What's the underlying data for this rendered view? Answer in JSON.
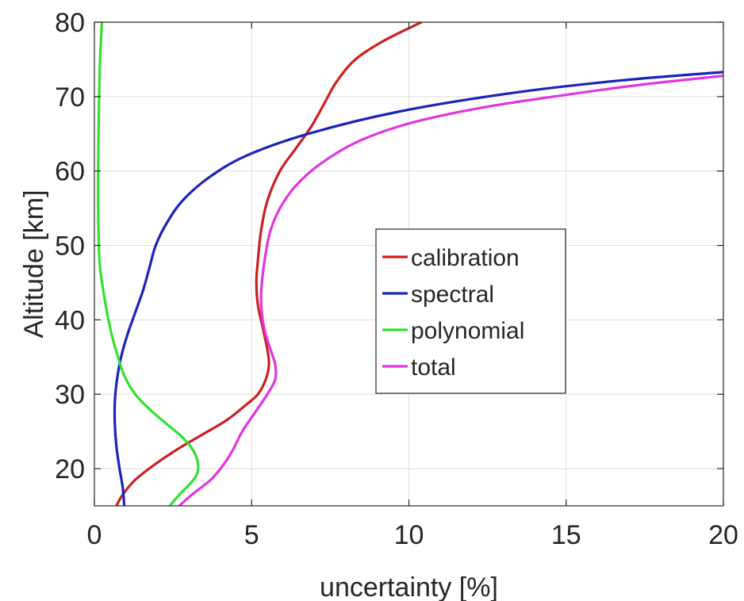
{
  "chart_data": {
    "type": "line",
    "title": "",
    "xlabel": "uncertainty [%]",
    "ylabel": "Altitude [km]",
    "xlim": [
      0,
      20
    ],
    "ylim": [
      15,
      80
    ],
    "xticks": [
      0,
      5,
      10,
      15,
      20
    ],
    "yticks": [
      20,
      30,
      40,
      50,
      60,
      70,
      80
    ],
    "xtick_labels": [
      "0",
      "5",
      "10",
      "15",
      "20"
    ],
    "ytick_labels": [
      "20",
      "30",
      "40",
      "50",
      "60",
      "70",
      "80"
    ],
    "grid": true,
    "legend_position": "center-right",
    "series": [
      {
        "name": "calibration",
        "color": "#cc1f1f",
        "points": [
          [
            0.7,
            15
          ],
          [
            0.9,
            16.5
          ],
          [
            1.3,
            18.5
          ],
          [
            1.9,
            20.5
          ],
          [
            2.6,
            22.5
          ],
          [
            3.4,
            24.5
          ],
          [
            4.2,
            26.5
          ],
          [
            4.8,
            28.5
          ],
          [
            5.2,
            30
          ],
          [
            5.45,
            32
          ],
          [
            5.55,
            34
          ],
          [
            5.5,
            36
          ],
          [
            5.35,
            39
          ],
          [
            5.2,
            42
          ],
          [
            5.15,
            45
          ],
          [
            5.2,
            48
          ],
          [
            5.3,
            52
          ],
          [
            5.5,
            56
          ],
          [
            5.9,
            60
          ],
          [
            6.4,
            63
          ],
          [
            6.9,
            66
          ],
          [
            7.3,
            69
          ],
          [
            7.7,
            72
          ],
          [
            8.3,
            75
          ],
          [
            9.2,
            77.5
          ],
          [
            10.4,
            80
          ]
        ]
      },
      {
        "name": "spectral",
        "color": "#1a24b8",
        "points": [
          [
            0.95,
            15
          ],
          [
            0.9,
            17.5
          ],
          [
            0.8,
            20
          ],
          [
            0.7,
            23
          ],
          [
            0.65,
            26
          ],
          [
            0.65,
            29
          ],
          [
            0.72,
            32
          ],
          [
            0.85,
            35
          ],
          [
            1.05,
            38
          ],
          [
            1.3,
            41
          ],
          [
            1.55,
            44
          ],
          [
            1.75,
            47
          ],
          [
            1.95,
            50
          ],
          [
            2.3,
            53
          ],
          [
            2.8,
            56
          ],
          [
            3.6,
            59
          ],
          [
            4.8,
            62
          ],
          [
            6.8,
            65
          ],
          [
            9.7,
            68
          ],
          [
            13.3,
            70.5
          ],
          [
            16.8,
            72.2
          ],
          [
            20,
            73.3
          ]
        ]
      },
      {
        "name": "polynomial",
        "color": "#33e02f",
        "points": [
          [
            2.4,
            15
          ],
          [
            2.7,
            16.5
          ],
          [
            3.15,
            18.5
          ],
          [
            3.3,
            20
          ],
          [
            3.2,
            22
          ],
          [
            2.85,
            24
          ],
          [
            2.3,
            26
          ],
          [
            1.75,
            28
          ],
          [
            1.3,
            30
          ],
          [
            0.95,
            32.5
          ],
          [
            0.75,
            35
          ],
          [
            0.55,
            38
          ],
          [
            0.4,
            41
          ],
          [
            0.28,
            44
          ],
          [
            0.18,
            47
          ],
          [
            0.14,
            50
          ],
          [
            0.12,
            55
          ],
          [
            0.12,
            60
          ],
          [
            0.13,
            65
          ],
          [
            0.15,
            70
          ],
          [
            0.18,
            75
          ],
          [
            0.24,
            80
          ]
        ]
      },
      {
        "name": "total",
        "color": "#e035e0",
        "points": [
          [
            2.7,
            15
          ],
          [
            3.1,
            16.5
          ],
          [
            3.7,
            18.5
          ],
          [
            4.1,
            20.5
          ],
          [
            4.4,
            22.5
          ],
          [
            4.7,
            25
          ],
          [
            5.1,
            27.5
          ],
          [
            5.5,
            30
          ],
          [
            5.75,
            32
          ],
          [
            5.75,
            34
          ],
          [
            5.6,
            36
          ],
          [
            5.45,
            38
          ],
          [
            5.35,
            40
          ],
          [
            5.3,
            43
          ],
          [
            5.35,
            46
          ],
          [
            5.45,
            49
          ],
          [
            5.6,
            52
          ],
          [
            5.9,
            55
          ],
          [
            6.4,
            58
          ],
          [
            7.2,
            61
          ],
          [
            8.4,
            64
          ],
          [
            10.1,
            66.5
          ],
          [
            12.3,
            68.5
          ],
          [
            14.6,
            70
          ],
          [
            17.2,
            71.5
          ],
          [
            20,
            72.8
          ]
        ]
      }
    ]
  }
}
